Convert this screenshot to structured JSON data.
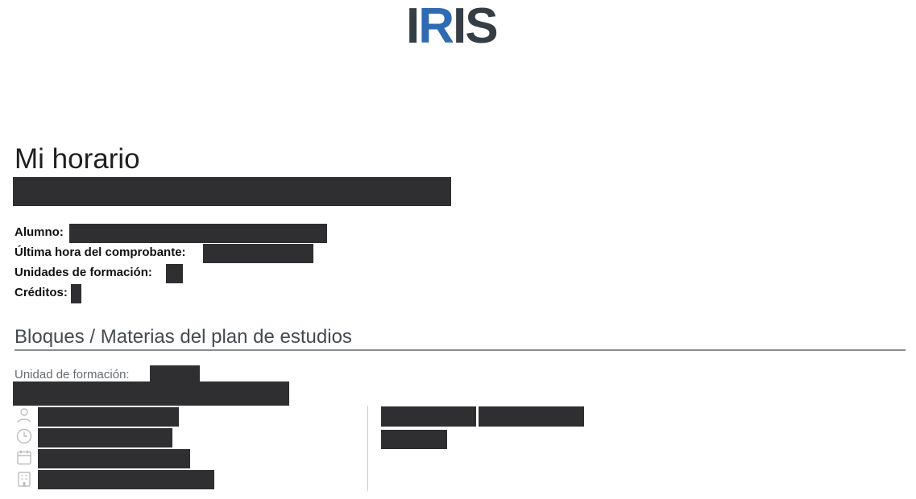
{
  "header": {
    "logo": {
      "part1": "I",
      "part2": "R",
      "part3": "IS",
      "accent_color": "#2f6bb3",
      "base_color": "#363e45"
    }
  },
  "page": {
    "title": "Mi horario"
  },
  "student_info": {
    "alumno_label": "Alumno:",
    "ultima_hora_label": "Última hora del comprobante:",
    "unidades_label": "Unidades de formación:",
    "creditos_label": "Créditos:"
  },
  "section": {
    "heading": "Bloques / Materias del plan de estudios",
    "unit_label": "Unidad de formación:",
    "icons": [
      "person-icon",
      "clock-icon",
      "calendar-icon",
      "building-icon"
    ]
  },
  "colors": {
    "redaction": "#2f2f31",
    "icon_gray": "#bdbdbd",
    "rule_gray": "#8a8d90"
  }
}
